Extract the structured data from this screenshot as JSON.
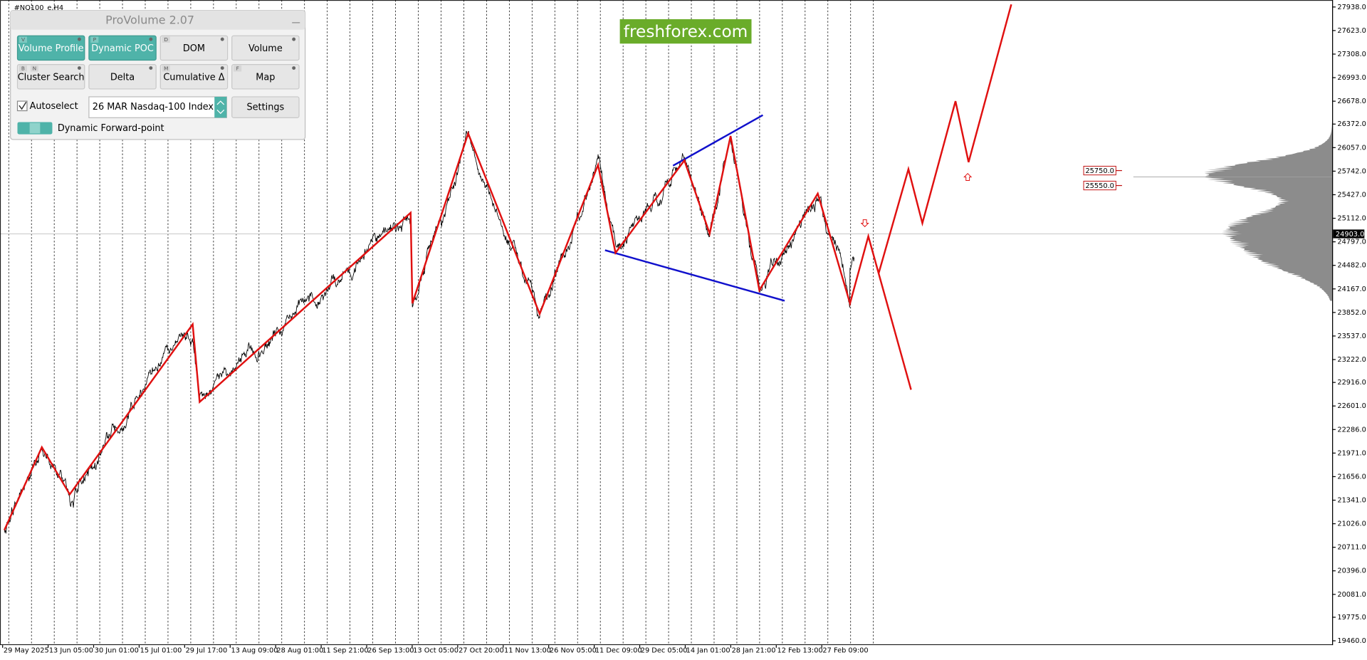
{
  "window": {
    "symbol": "#NQ100_e,H4"
  },
  "panel": {
    "title": "ProVolume 2.07",
    "buttons": [
      {
        "label": "Volume Profile",
        "keys": [
          "V"
        ]
      },
      {
        "label": "Dynamic POC",
        "keys": [
          "P"
        ]
      },
      {
        "label": "DOM",
        "keys": [
          "D"
        ]
      },
      {
        "label": "Volume",
        "keys": []
      },
      {
        "label": "Cluster Search",
        "keys": [
          "B",
          "N"
        ]
      },
      {
        "label": "Delta",
        "keys": []
      },
      {
        "label": "Cumulative Δ",
        "keys": [
          "M"
        ]
      },
      {
        "label": "Map",
        "keys": [
          "F"
        ]
      }
    ],
    "autoselect": "Autoselect",
    "instrument": "26 MAR Nasdaq-100 Index",
    "settings": "Settings",
    "toggle": "Dynamic Forward-point"
  },
  "logo": "freshforex.com",
  "price_axis": {
    "ylim": [
      19460,
      27938
    ],
    "yticks": [
      {
        "value": 27938,
        "label": "27938.0"
      },
      {
        "value": 27623,
        "label": "27623.0"
      },
      {
        "value": 27308,
        "label": "27308.0"
      },
      {
        "value": 26993,
        "label": "26993.0"
      },
      {
        "value": 26678,
        "label": "26678.0"
      },
      {
        "value": 26372,
        "label": "26372.0"
      },
      {
        "value": 26057,
        "label": "26057.0"
      },
      {
        "value": 25742,
        "label": "25742.0"
      },
      {
        "value": 25427,
        "label": "25427.0"
      },
      {
        "value": 25112,
        "label": "25112.0"
      },
      {
        "value": 24797,
        "label": "24797.0"
      },
      {
        "value": 24482,
        "label": "24482.0"
      },
      {
        "value": 24167,
        "label": "24167.0"
      },
      {
        "value": 23852,
        "label": "23852.0"
      },
      {
        "value": 23537,
        "label": "23537.0"
      },
      {
        "value": 23222,
        "label": "23222.0"
      },
      {
        "value": 22916,
        "label": "22916.0"
      },
      {
        "value": 22601,
        "label": "22601.0"
      },
      {
        "value": 22286,
        "label": "22286.0"
      },
      {
        "value": 21971,
        "label": "21971.0"
      },
      {
        "value": 21656,
        "label": "21656.0"
      },
      {
        "value": 21341,
        "label": "21341.0"
      },
      {
        "value": 21026,
        "label": "21026.0"
      },
      {
        "value": 20711,
        "label": "20711.0"
      },
      {
        "value": 20396,
        "label": "20396.0"
      },
      {
        "value": 20081,
        "label": "20081.0"
      },
      {
        "value": 19775,
        "label": "19775.0"
      },
      {
        "value": 19460,
        "label": "19460.0"
      }
    ],
    "current_price": {
      "value": 24903,
      "label": "24903.0"
    }
  },
  "levels": [
    {
      "value": 25750,
      "label": "25750.0"
    },
    {
      "value": 25550,
      "label": "25550.0"
    }
  ],
  "time_axis": {
    "labels": [
      "29 May 2025",
      "13 Jun 05:00",
      "30 Jun 01:00",
      "15 Jul 01:00",
      "29 Jul 17:00",
      "13 Aug 09:00",
      "28 Aug 01:00",
      "11 Sep 21:00",
      "26 Sep 13:00",
      "13 Oct 05:00",
      "27 Oct 20:00",
      "11 Nov 13:00",
      "26 Nov 05:00",
      "11 Dec 09:00",
      "29 Dec 05:00",
      "14 Jan 01:00",
      "28 Jan 21:00",
      "12 Feb 13:00",
      "27 Feb 09:00"
    ]
  }
}
